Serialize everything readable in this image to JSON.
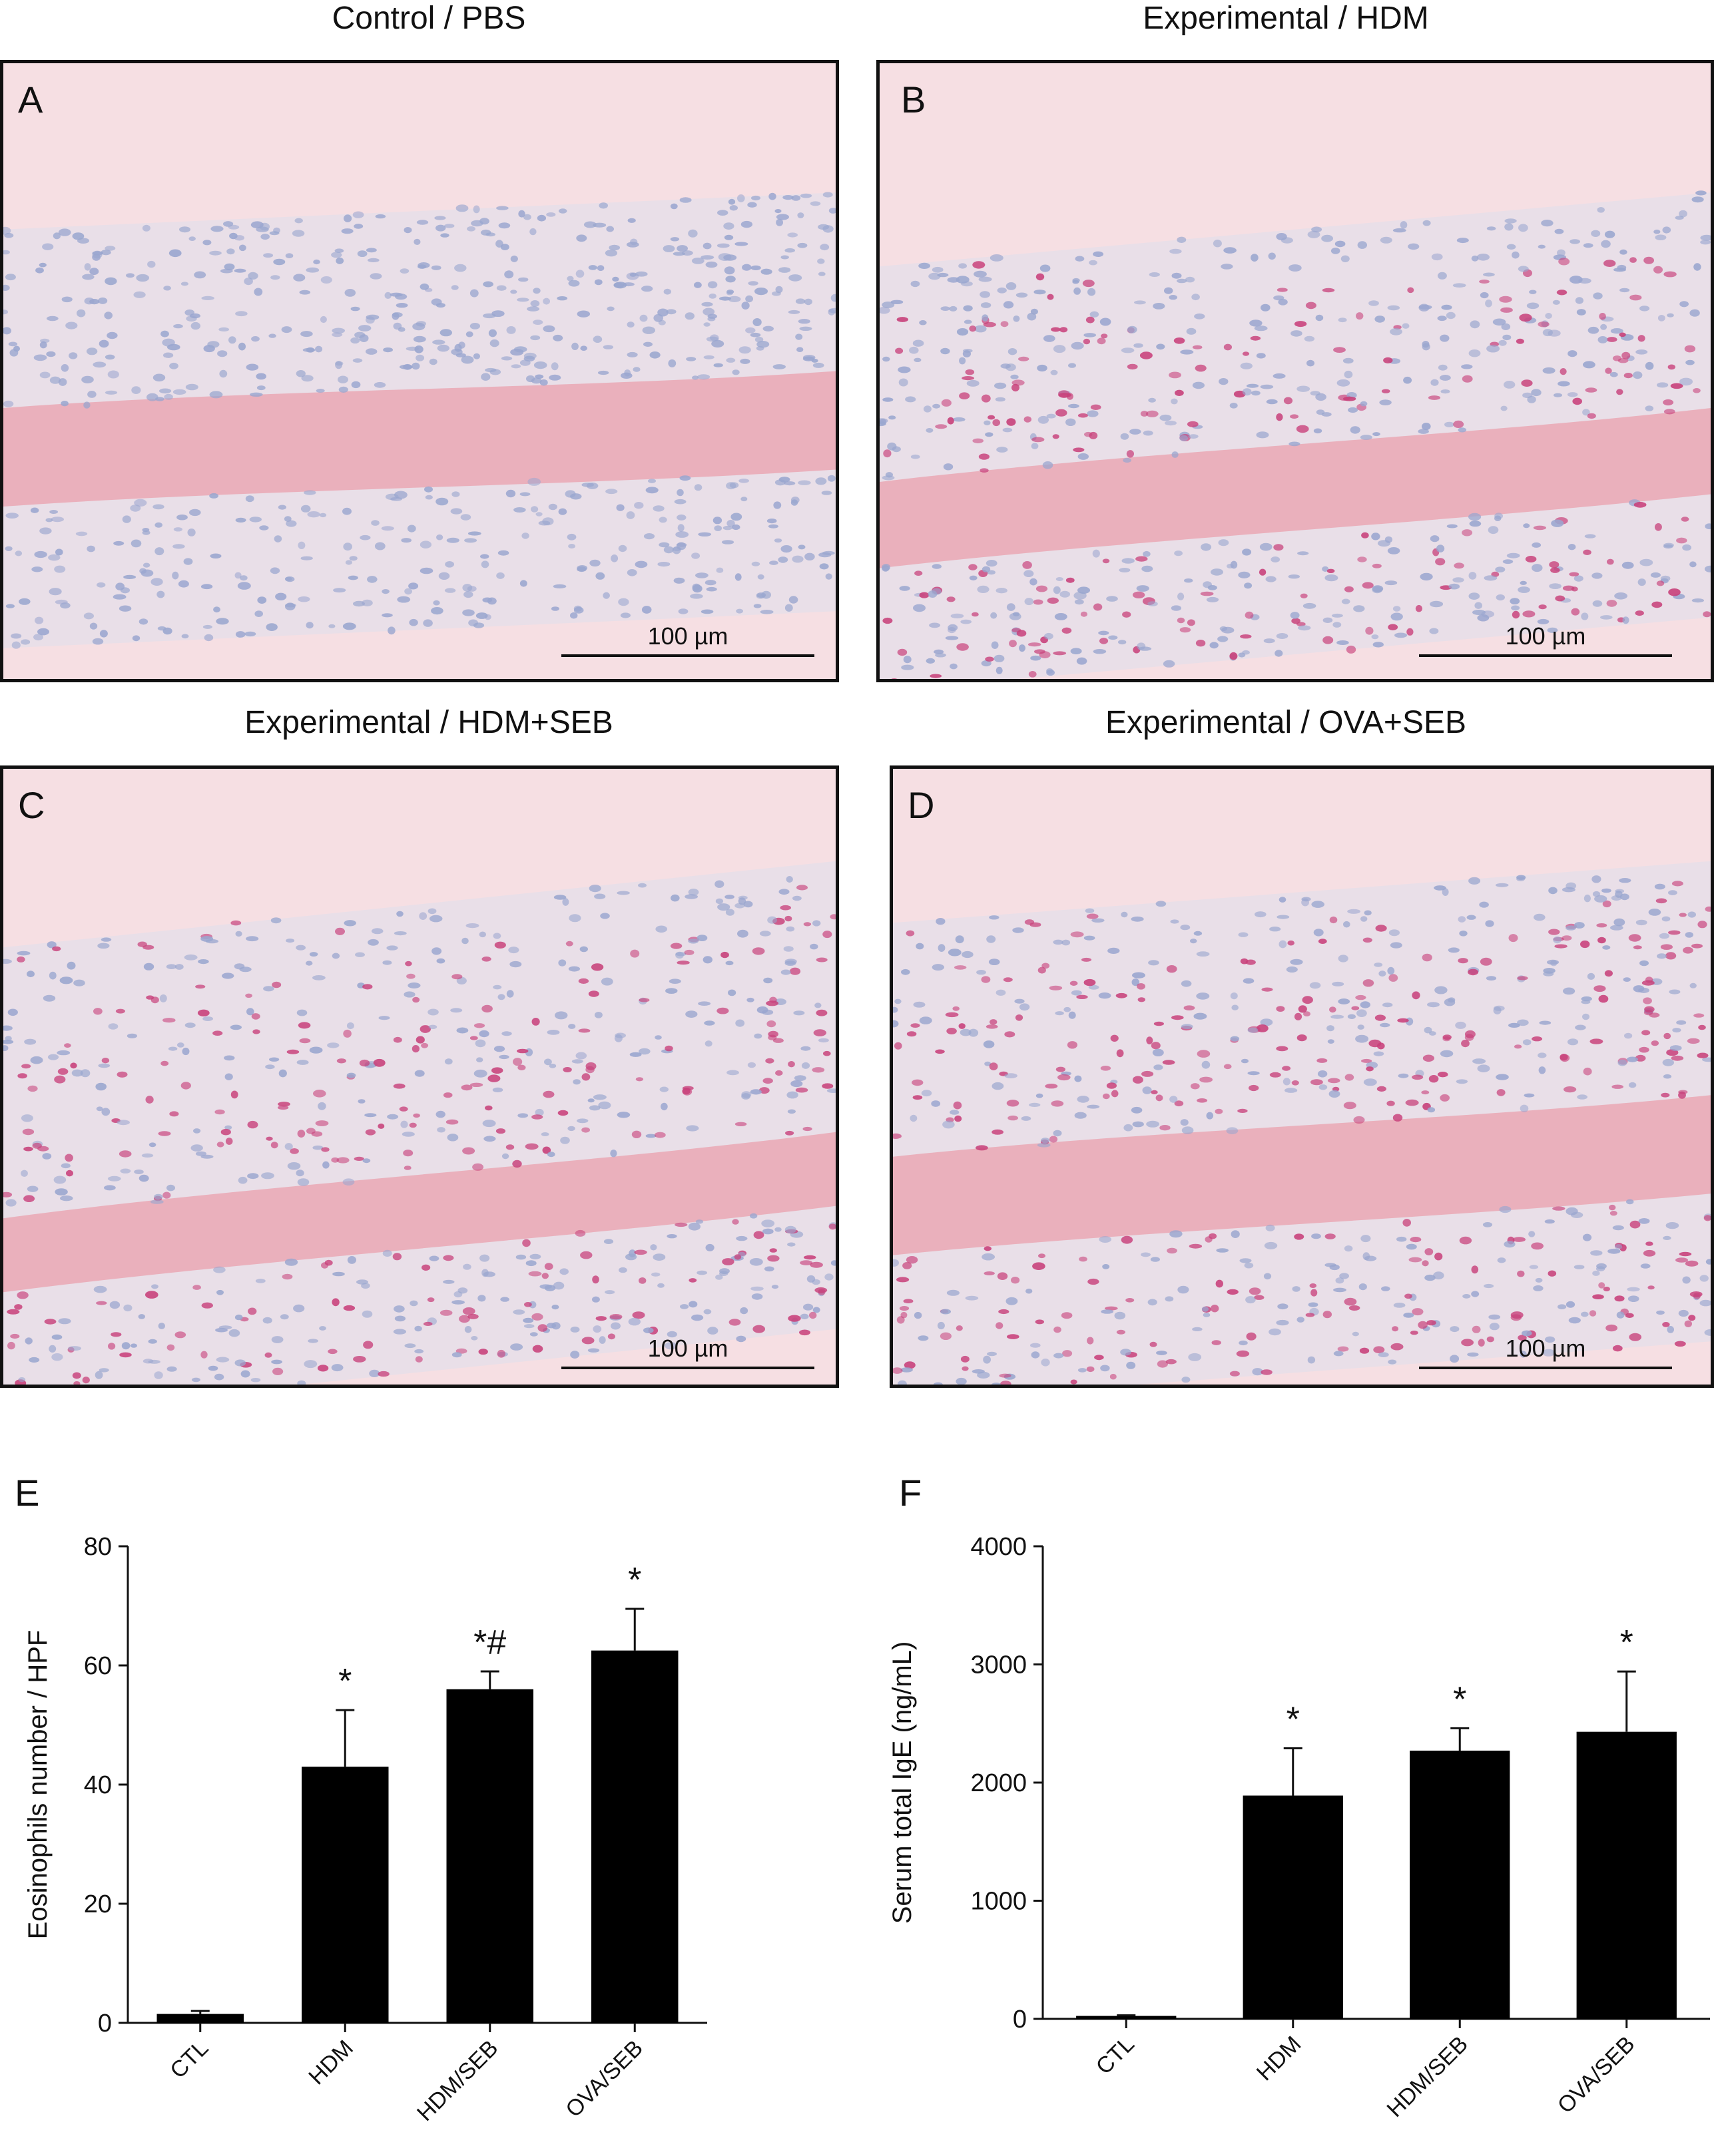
{
  "panels": [
    {
      "title": "Control / PBS",
      "label": "A",
      "scale": "100 µm"
    },
    {
      "title": "Experimental / HDM",
      "label": "B",
      "scale": "100 µm"
    },
    {
      "title": "Experimental / HDM+SEB",
      "label": "C",
      "scale": "100 µm"
    },
    {
      "title": "Experimental / OVA+SEB",
      "label": "D",
      "scale": "100 µm"
    }
  ],
  "colors": {
    "background_pink": "#f6dfe3",
    "bone_pink": "#eaa8b4",
    "nuclei_blue": "#9aa6cf",
    "eosinophil_red": "#c8407a",
    "bar": "#000000"
  },
  "chart_data": [
    {
      "type": "bar",
      "panel_label": "E",
      "title": "",
      "xlabel": "",
      "ylabel": "Eosinophils number / HPF",
      "categories": [
        "CTL",
        "HDM",
        "HDM/SEB",
        "OVA/SEB"
      ],
      "values": [
        1.5,
        43,
        56,
        62.5
      ],
      "errors": [
        0.5,
        9.5,
        3,
        7
      ],
      "annotations": [
        "",
        "*",
        "*#",
        "*"
      ],
      "ylim": [
        0,
        80
      ],
      "yticks": [
        "0",
        "20",
        "40",
        "60",
        "80"
      ],
      "yticks_values": [
        0,
        20,
        40,
        60,
        80
      ]
    },
    {
      "type": "bar",
      "panel_label": "F",
      "title": "",
      "xlabel": "",
      "ylabel": "Serum total IgE (ng/mL)",
      "categories": [
        "CTL",
        "HDM",
        "HDM/SEB",
        "OVA/SEB"
      ],
      "values": [
        25,
        1890,
        2270,
        2430
      ],
      "errors": [
        5,
        400,
        190,
        510
      ],
      "annotations": [
        "",
        "*",
        "*",
        "*"
      ],
      "ylim": [
        0,
        4000
      ],
      "yticks": [
        "0",
        "1000",
        "2000",
        "3000",
        "4000"
      ],
      "yticks_values": [
        0,
        1000,
        2000,
        3000,
        4000
      ]
    }
  ]
}
